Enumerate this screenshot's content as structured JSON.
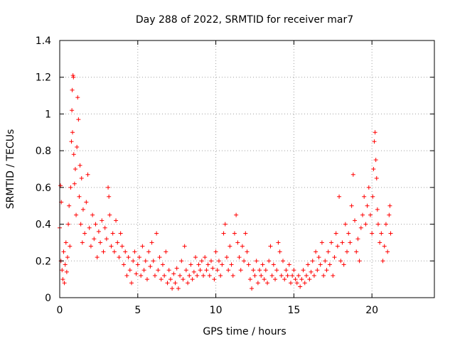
{
  "chart_data": {
    "type": "scatter",
    "title": "Day 288 of 2022, SRMTID for receiver mar7",
    "xlabel": "GPS time / hours",
    "ylabel": "SRMTID / TECUs",
    "xlim": [
      0,
      24
    ],
    "ylim": [
      0,
      1.4
    ],
    "xticks": [
      0,
      5,
      10,
      15,
      20
    ],
    "yticks": [
      0,
      0.2,
      0.4,
      0.6,
      0.8,
      1,
      1.2,
      1.4
    ],
    "ytick_labels": [
      "0",
      "0.2",
      "0.4",
      "0.6",
      "0.8",
      "1",
      "1.2",
      "1.4"
    ],
    "grid": true,
    "marker": "plus",
    "color": "#ff0000",
    "series": [
      {
        "name": "SRMTID",
        "points": [
          [
            0.0,
            0.38
          ],
          [
            0.05,
            0.61
          ],
          [
            0.08,
            0.2
          ],
          [
            0.1,
            0.52
          ],
          [
            0.15,
            0.15
          ],
          [
            0.2,
            0.1
          ],
          [
            0.25,
            0.25
          ],
          [
            0.3,
            0.08
          ],
          [
            0.35,
            0.18
          ],
          [
            0.4,
            0.3
          ],
          [
            0.45,
            0.14
          ],
          [
            0.5,
            0.22
          ],
          [
            0.55,
            0.4
          ],
          [
            0.6,
            0.5
          ],
          [
            0.65,
            0.28
          ],
          [
            0.7,
            0.6
          ],
          [
            0.75,
            0.85
          ],
          [
            0.78,
            1.02
          ],
          [
            0.8,
            1.13
          ],
          [
            0.82,
            0.9
          ],
          [
            0.85,
            1.21
          ],
          [
            0.88,
            1.2
          ],
          [
            0.9,
            0.78
          ],
          [
            0.95,
            0.62
          ],
          [
            1.0,
            0.7
          ],
          [
            1.05,
            0.45
          ],
          [
            1.1,
            0.82
          ],
          [
            1.15,
            1.09
          ],
          [
            1.2,
            0.97
          ],
          [
            1.25,
            0.55
          ],
          [
            1.3,
            0.72
          ],
          [
            1.35,
            0.4
          ],
          [
            1.4,
            0.65
          ],
          [
            1.45,
            0.3
          ],
          [
            1.5,
            0.48
          ],
          [
            1.6,
            0.35
          ],
          [
            1.7,
            0.52
          ],
          [
            1.8,
            0.67
          ],
          [
            1.9,
            0.38
          ],
          [
            2.0,
            0.28
          ],
          [
            2.1,
            0.45
          ],
          [
            2.2,
            0.32
          ],
          [
            2.3,
            0.4
          ],
          [
            2.4,
            0.22
          ],
          [
            2.5,
            0.36
          ],
          [
            2.6,
            0.3
          ],
          [
            2.7,
            0.42
          ],
          [
            2.8,
            0.25
          ],
          [
            2.9,
            0.38
          ],
          [
            3.0,
            0.32
          ],
          [
            3.1,
            0.6
          ],
          [
            3.15,
            0.55
          ],
          [
            3.2,
            0.45
          ],
          [
            3.3,
            0.28
          ],
          [
            3.4,
            0.35
          ],
          [
            3.5,
            0.25
          ],
          [
            3.6,
            0.42
          ],
          [
            3.7,
            0.3
          ],
          [
            3.8,
            0.22
          ],
          [
            3.9,
            0.35
          ],
          [
            4.0,
            0.28
          ],
          [
            4.1,
            0.18
          ],
          [
            4.2,
            0.25
          ],
          [
            4.3,
            0.12
          ],
          [
            4.4,
            0.22
          ],
          [
            4.5,
            0.15
          ],
          [
            4.6,
            0.08
          ],
          [
            4.7,
            0.2
          ],
          [
            4.8,
            0.25
          ],
          [
            4.9,
            0.13
          ],
          [
            5.0,
            0.18
          ],
          [
            5.1,
            0.22
          ],
          [
            5.2,
            0.12
          ],
          [
            5.3,
            0.28
          ],
          [
            5.4,
            0.15
          ],
          [
            5.5,
            0.2
          ],
          [
            5.6,
            0.1
          ],
          [
            5.7,
            0.25
          ],
          [
            5.8,
            0.17
          ],
          [
            5.9,
            0.3
          ],
          [
            6.0,
            0.2
          ],
          [
            6.1,
            0.12
          ],
          [
            6.2,
            0.35
          ],
          [
            6.3,
            0.15
          ],
          [
            6.4,
            0.22
          ],
          [
            6.5,
            0.1
          ],
          [
            6.6,
            0.18
          ],
          [
            6.7,
            0.12
          ],
          [
            6.8,
            0.25
          ],
          [
            6.9,
            0.08
          ],
          [
            7.0,
            0.15
          ],
          [
            7.1,
            0.1
          ],
          [
            7.2,
            0.05
          ],
          [
            7.3,
            0.13
          ],
          [
            7.4,
            0.08
          ],
          [
            7.5,
            0.16
          ],
          [
            7.6,
            0.05
          ],
          [
            7.7,
            0.12
          ],
          [
            7.8,
            0.2
          ],
          [
            7.9,
            0.1
          ],
          [
            8.0,
            0.28
          ],
          [
            8.1,
            0.15
          ],
          [
            8.2,
            0.08
          ],
          [
            8.3,
            0.12
          ],
          [
            8.4,
            0.18
          ],
          [
            8.5,
            0.1
          ],
          [
            8.6,
            0.14
          ],
          [
            8.7,
            0.22
          ],
          [
            8.8,
            0.12
          ],
          [
            8.9,
            0.18
          ],
          [
            9.0,
            0.15
          ],
          [
            9.1,
            0.2
          ],
          [
            9.2,
            0.12
          ],
          [
            9.3,
            0.22
          ],
          [
            9.4,
            0.15
          ],
          [
            9.5,
            0.18
          ],
          [
            9.6,
            0.12
          ],
          [
            9.7,
            0.2
          ],
          [
            9.8,
            0.16
          ],
          [
            9.9,
            0.1
          ],
          [
            10.0,
            0.25
          ],
          [
            10.1,
            0.15
          ],
          [
            10.2,
            0.2
          ],
          [
            10.3,
            0.12
          ],
          [
            10.4,
            0.18
          ],
          [
            10.5,
            0.35
          ],
          [
            10.6,
            0.4
          ],
          [
            10.7,
            0.22
          ],
          [
            10.8,
            0.15
          ],
          [
            10.9,
            0.28
          ],
          [
            11.0,
            0.18
          ],
          [
            11.1,
            0.12
          ],
          [
            11.2,
            0.35
          ],
          [
            11.3,
            0.45
          ],
          [
            11.4,
            0.3
          ],
          [
            11.5,
            0.22
          ],
          [
            11.6,
            0.15
          ],
          [
            11.7,
            0.28
          ],
          [
            11.8,
            0.2
          ],
          [
            11.9,
            0.35
          ],
          [
            12.0,
            0.25
          ],
          [
            12.1,
            0.18
          ],
          [
            12.2,
            0.1
          ],
          [
            12.3,
            0.05
          ],
          [
            12.4,
            0.15
          ],
          [
            12.5,
            0.12
          ],
          [
            12.6,
            0.2
          ],
          [
            12.7,
            0.08
          ],
          [
            12.8,
            0.15
          ],
          [
            12.9,
            0.12
          ],
          [
            13.0,
            0.18
          ],
          [
            13.1,
            0.1
          ],
          [
            13.2,
            0.15
          ],
          [
            13.3,
            0.08
          ],
          [
            13.4,
            0.2
          ],
          [
            13.5,
            0.28
          ],
          [
            13.6,
            0.12
          ],
          [
            13.7,
            0.18
          ],
          [
            13.8,
            0.1
          ],
          [
            13.9,
            0.15
          ],
          [
            14.0,
            0.3
          ],
          [
            14.1,
            0.25
          ],
          [
            14.2,
            0.12
          ],
          [
            14.3,
            0.2
          ],
          [
            14.4,
            0.1
          ],
          [
            14.5,
            0.15
          ],
          [
            14.6,
            0.12
          ],
          [
            14.7,
            0.18
          ],
          [
            14.8,
            0.08
          ],
          [
            14.9,
            0.12
          ],
          [
            15.0,
            0.15
          ],
          [
            15.1,
            0.1
          ],
          [
            15.2,
            0.08
          ],
          [
            15.3,
            0.12
          ],
          [
            15.4,
            0.06
          ],
          [
            15.5,
            0.1
          ],
          [
            15.6,
            0.15
          ],
          [
            15.7,
            0.08
          ],
          [
            15.8,
            0.12
          ],
          [
            15.9,
            0.18
          ],
          [
            16.0,
            0.1
          ],
          [
            16.1,
            0.14
          ],
          [
            16.2,
            0.2
          ],
          [
            16.3,
            0.12
          ],
          [
            16.4,
            0.25
          ],
          [
            16.5,
            0.15
          ],
          [
            16.6,
            0.22
          ],
          [
            16.7,
            0.18
          ],
          [
            16.8,
            0.3
          ],
          [
            16.9,
            0.12
          ],
          [
            17.0,
            0.2
          ],
          [
            17.1,
            0.15
          ],
          [
            17.2,
            0.25
          ],
          [
            17.3,
            0.18
          ],
          [
            17.4,
            0.3
          ],
          [
            17.5,
            0.12
          ],
          [
            17.6,
            0.22
          ],
          [
            17.7,
            0.35
          ],
          [
            17.8,
            0.28
          ],
          [
            17.9,
            0.55
          ],
          [
            18.0,
            0.2
          ],
          [
            18.1,
            0.3
          ],
          [
            18.2,
            0.18
          ],
          [
            18.3,
            0.4
          ],
          [
            18.4,
            0.25
          ],
          [
            18.5,
            0.35
          ],
          [
            18.6,
            0.3
          ],
          [
            18.7,
            0.5
          ],
          [
            18.8,
            0.67
          ],
          [
            18.9,
            0.42
          ],
          [
            19.0,
            0.25
          ],
          [
            19.1,
            0.32
          ],
          [
            19.2,
            0.2
          ],
          [
            19.3,
            0.38
          ],
          [
            19.4,
            0.45
          ],
          [
            19.5,
            0.55
          ],
          [
            19.6,
            0.4
          ],
          [
            19.7,
            0.5
          ],
          [
            19.8,
            0.6
          ],
          [
            19.9,
            0.45
          ],
          [
            20.0,
            0.35
          ],
          [
            20.05,
            0.55
          ],
          [
            20.1,
            0.7
          ],
          [
            20.15,
            0.85
          ],
          [
            20.2,
            0.9
          ],
          [
            20.25,
            0.75
          ],
          [
            20.3,
            0.65
          ],
          [
            20.35,
            0.48
          ],
          [
            20.4,
            0.4
          ],
          [
            20.5,
            0.3
          ],
          [
            20.6,
            0.35
          ],
          [
            20.7,
            0.2
          ],
          [
            20.8,
            0.28
          ],
          [
            20.9,
            0.4
          ],
          [
            21.0,
            0.25
          ],
          [
            21.1,
            0.45
          ],
          [
            21.15,
            0.5
          ],
          [
            21.2,
            0.35
          ]
        ]
      }
    ]
  }
}
